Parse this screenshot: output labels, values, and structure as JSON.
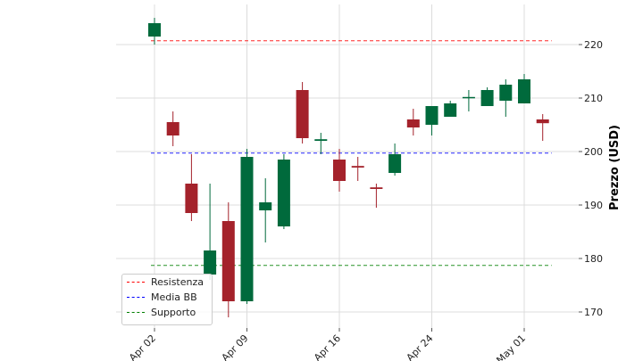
{
  "chart_data": {
    "type": "candlestick",
    "title": "",
    "xlabel": "",
    "ylabel": "Prezzo (USD)",
    "ylim": [
      167,
      227.5
    ],
    "yticks": [
      170,
      180,
      190,
      200,
      210,
      220
    ],
    "xtick_labels": [
      "Apr 02",
      "Apr 09",
      "Apr 16",
      "Apr 24",
      "May 01"
    ],
    "xtick_index": [
      0,
      5,
      10,
      15,
      20
    ],
    "grid": true,
    "legend_position": "lower-left",
    "up_color": "#006a3c",
    "down_color": "#a4222b",
    "candles": [
      {
        "open": 221.5,
        "high": 225.0,
        "low": 220.0,
        "close": 224.0
      },
      {
        "open": 205.5,
        "high": 207.5,
        "low": 201.0,
        "close": 203.0
      },
      {
        "open": 194.0,
        "high": 199.5,
        "low": 187.0,
        "close": 188.5
      },
      {
        "open": 177.0,
        "high": 194.0,
        "low": 176.0,
        "close": 181.5
      },
      {
        "open": 187.0,
        "high": 190.5,
        "low": 169.0,
        "close": 172.0
      },
      {
        "open": 172.0,
        "high": 200.5,
        "low": 171.5,
        "close": 199.0
      },
      {
        "open": 189.0,
        "high": 195.0,
        "low": 183.0,
        "close": 190.5
      },
      {
        "open": 186.0,
        "high": 199.5,
        "low": 185.5,
        "close": 198.5
      },
      {
        "open": 211.5,
        "high": 213.0,
        "low": 201.5,
        "close": 202.5
      },
      {
        "open": 202.0,
        "high": 203.5,
        "low": 199.5,
        "close": 202.3
      },
      {
        "open": 198.5,
        "high": 200.5,
        "low": 192.5,
        "close": 194.5
      },
      {
        "open": 197.3,
        "high": 199.0,
        "low": 194.5,
        "close": 197.0
      },
      {
        "open": 193.3,
        "high": 194.0,
        "low": 189.5,
        "close": 193.0
      },
      {
        "open": 196.0,
        "high": 201.5,
        "low": 195.5,
        "close": 199.5
      },
      {
        "open": 206.0,
        "high": 208.0,
        "low": 203.0,
        "close": 204.5
      },
      {
        "open": 205.0,
        "high": 208.5,
        "low": 203.0,
        "close": 208.5
      },
      {
        "open": 206.5,
        "high": 209.5,
        "low": 206.5,
        "close": 209.0
      },
      {
        "open": 210.0,
        "high": 211.5,
        "low": 207.5,
        "close": 210.2
      },
      {
        "open": 208.5,
        "high": 212.0,
        "low": 208.5,
        "close": 211.5
      },
      {
        "open": 209.5,
        "high": 213.5,
        "low": 206.5,
        "close": 212.5
      },
      {
        "open": 209.0,
        "high": 214.5,
        "low": 209.0,
        "close": 213.5
      },
      {
        "open": 206.0,
        "high": 207.0,
        "low": 202.0,
        "close": 205.3
      }
    ],
    "lines": [
      {
        "name": "Resistenza",
        "value": 220.7,
        "color": "#ff0000"
      },
      {
        "name": "Media BB",
        "value": 199.7,
        "color": "#0000ff"
      },
      {
        "name": "Supporto",
        "value": 178.7,
        "color": "#008000"
      }
    ]
  }
}
